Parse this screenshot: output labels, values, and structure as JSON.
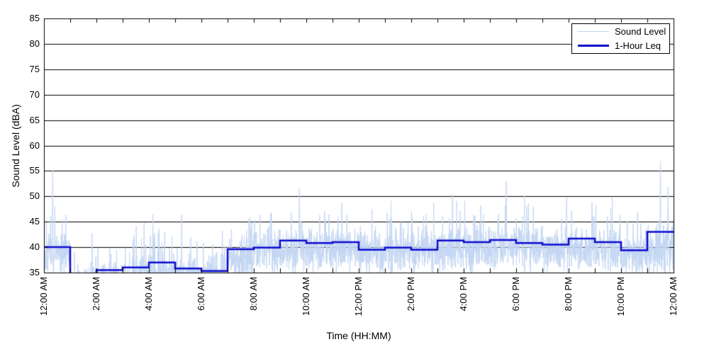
{
  "chart_data": {
    "type": "line",
    "title": "",
    "xlabel": "Time (HH:MM)",
    "ylabel": "Sound Level (dBA)",
    "xlim_hours": [
      0,
      24
    ],
    "ylim": [
      35,
      85
    ],
    "ytick_step": 5,
    "y_tick_labels": [
      "35",
      "40",
      "45",
      "50",
      "55",
      "60",
      "65",
      "70",
      "75",
      "80",
      "85"
    ],
    "x_tick_labels": [
      "12:00 AM",
      "2:00 AM",
      "4:00 AM",
      "6:00 AM",
      "8:00 AM",
      "10:00 AM",
      "12:00 PM",
      "2:00 PM",
      "4:00 PM",
      "6:00 PM",
      "8:00 PM",
      "10:00 PM",
      "12:00 AM"
    ],
    "x_minor_tick_every_hours": 1,
    "x_label_every_hours": 2,
    "grid": "horizontal-solid",
    "legend_position": "top-right",
    "axis_color": "#000000",
    "background": "#FFFFFF",
    "series": [
      {
        "name": "Sound Level",
        "style": "noisy-line",
        "color": "#C3D6F3",
        "line_width": 1,
        "representation": "synthesized_envelope",
        "seed": 7,
        "samples_per_hour": 120,
        "hourly_envelope": [
          {
            "hour": 0,
            "base": 38.5,
            "amp": 2.2,
            "bump_p": 0.1
          },
          {
            "hour": 1,
            "base": 32.8,
            "amp": 2.0,
            "bump_p": 0.06
          },
          {
            "hour": 2,
            "base": 33.2,
            "amp": 2.2,
            "bump_p": 0.08
          },
          {
            "hour": 3,
            "base": 33.8,
            "amp": 2.6,
            "bump_p": 0.12
          },
          {
            "hour": 4,
            "base": 34.3,
            "amp": 2.8,
            "bump_p": 0.14
          },
          {
            "hour": 5,
            "base": 33.6,
            "amp": 2.4,
            "bump_p": 0.1
          },
          {
            "hour": 6,
            "base": 34.2,
            "amp": 2.6,
            "bump_p": 0.12
          },
          {
            "hour": 7,
            "base": 37.0,
            "amp": 2.6,
            "bump_p": 0.14
          },
          {
            "hour": 8,
            "base": 39.6,
            "amp": 2.3,
            "bump_p": 0.07
          },
          {
            "hour": 9,
            "base": 39.7,
            "amp": 2.3,
            "bump_p": 0.07
          },
          {
            "hour": 10,
            "base": 39.6,
            "amp": 2.3,
            "bump_p": 0.07
          },
          {
            "hour": 11,
            "base": 39.8,
            "amp": 2.3,
            "bump_p": 0.07
          },
          {
            "hour": 12,
            "base": 39.2,
            "amp": 2.3,
            "bump_p": 0.07
          },
          {
            "hour": 13,
            "base": 39.5,
            "amp": 2.3,
            "bump_p": 0.07
          },
          {
            "hour": 14,
            "base": 39.2,
            "amp": 2.3,
            "bump_p": 0.07
          },
          {
            "hour": 15,
            "base": 39.8,
            "amp": 2.4,
            "bump_p": 0.07
          },
          {
            "hour": 16,
            "base": 39.8,
            "amp": 2.4,
            "bump_p": 0.07
          },
          {
            "hour": 17,
            "base": 39.9,
            "amp": 2.4,
            "bump_p": 0.07
          },
          {
            "hour": 18,
            "base": 39.8,
            "amp": 2.3,
            "bump_p": 0.07
          },
          {
            "hour": 19,
            "base": 39.5,
            "amp": 2.3,
            "bump_p": 0.07
          },
          {
            "hour": 20,
            "base": 39.9,
            "amp": 2.4,
            "bump_p": 0.07
          },
          {
            "hour": 21,
            "base": 39.5,
            "amp": 2.4,
            "bump_p": 0.07
          },
          {
            "hour": 22,
            "base": 38.5,
            "amp": 2.4,
            "bump_p": 0.06
          },
          {
            "hour": 23,
            "base": 39.0,
            "amp": 2.6,
            "bump_p": 0.08
          }
        ],
        "peaks": [
          {
            "hour": 0.33,
            "dBA": 55.1
          },
          {
            "hour": 0.42,
            "dBA": 48.0
          },
          {
            "hour": 3.82,
            "dBA": 44.8
          },
          {
            "hour": 4.15,
            "dBA": 46.5
          },
          {
            "hour": 4.38,
            "dBA": 43.6
          },
          {
            "hour": 5.25,
            "dBA": 46.4
          },
          {
            "hour": 6.8,
            "dBA": 43.2
          },
          {
            "hour": 7.8,
            "dBA": 45.5
          },
          {
            "hour": 7.92,
            "dBA": 44.8
          },
          {
            "hour": 9.73,
            "dBA": 51.5
          },
          {
            "hour": 10.7,
            "dBA": 47.0
          },
          {
            "hour": 11.35,
            "dBA": 48.7
          },
          {
            "hour": 12.5,
            "dBA": 47.5
          },
          {
            "hour": 15.57,
            "dBA": 50.4
          },
          {
            "hour": 16.65,
            "dBA": 48.2
          },
          {
            "hour": 17.62,
            "dBA": 53.0
          },
          {
            "hour": 19.92,
            "dBA": 49.7
          },
          {
            "hour": 20.88,
            "dBA": 48.8
          },
          {
            "hour": 23.49,
            "dBA": 57.0
          },
          {
            "hour": 23.78,
            "dBA": 51.8
          }
        ],
        "note": "Dense 1-minute sound-level trace; exact waveform approximated from visual envelope and visible peaks"
      },
      {
        "name": "1-Hour Leq",
        "style": "step-line",
        "color": "#0B0BCE",
        "line_width": 2.5,
        "hours": [
          0,
          1,
          2,
          3,
          4,
          5,
          6,
          7,
          8,
          9,
          10,
          11,
          12,
          13,
          14,
          15,
          16,
          17,
          18,
          19,
          20,
          21,
          22,
          23
        ],
        "values": [
          40.0,
          null,
          35.5,
          36.0,
          37.0,
          35.8,
          35.3,
          39.6,
          39.9,
          41.3,
          40.8,
          41.0,
          39.5,
          39.9,
          39.5,
          41.3,
          41.0,
          41.4,
          40.8,
          40.5,
          41.7,
          41.0,
          39.4,
          43.0
        ],
        "note": "Hour 01:00-02:00 value is below the 35 dBA axis minimum; the step line is clipped below the plot there"
      }
    ]
  },
  "legend": {
    "items": [
      {
        "label": "Sound Level"
      },
      {
        "label": "1-Hour Leq"
      }
    ]
  }
}
